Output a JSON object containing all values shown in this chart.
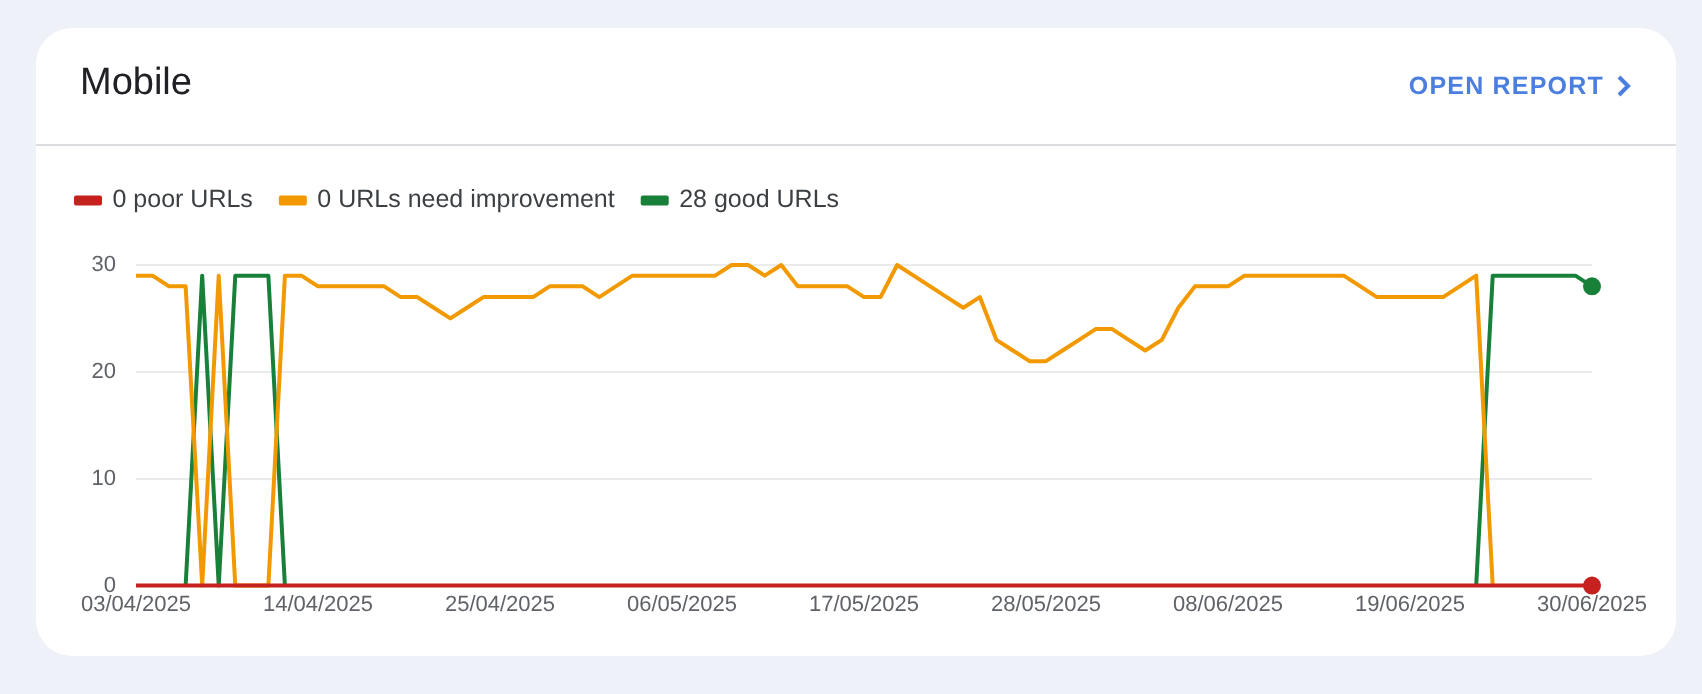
{
  "chart_data": {
    "type": "line",
    "title": "Mobile",
    "annotations": [
      "OPEN REPORT"
    ],
    "x": [
      "2025-04-03",
      "2025-04-04",
      "2025-04-05",
      "2025-04-06",
      "2025-04-07",
      "2025-04-08",
      "2025-04-09",
      "2025-04-10",
      "2025-04-11",
      "2025-04-12",
      "2025-04-13",
      "2025-04-14",
      "2025-04-15",
      "2025-04-16",
      "2025-04-17",
      "2025-04-18",
      "2025-04-19",
      "2025-04-20",
      "2025-04-21",
      "2025-04-22",
      "2025-04-23",
      "2025-04-24",
      "2025-04-25",
      "2025-04-26",
      "2025-04-27",
      "2025-04-28",
      "2025-04-29",
      "2025-04-30",
      "2025-05-01",
      "2025-05-02",
      "2025-05-03",
      "2025-05-04",
      "2025-05-05",
      "2025-05-06",
      "2025-05-07",
      "2025-05-08",
      "2025-05-09",
      "2025-05-10",
      "2025-05-11",
      "2025-05-12",
      "2025-05-13",
      "2025-05-14",
      "2025-05-15",
      "2025-05-16",
      "2025-05-17",
      "2025-05-18",
      "2025-05-19",
      "2025-05-20",
      "2025-05-21",
      "2025-05-22",
      "2025-05-23",
      "2025-05-24",
      "2025-05-25",
      "2025-05-26",
      "2025-05-27",
      "2025-05-28",
      "2025-05-29",
      "2025-05-30",
      "2025-05-31",
      "2025-06-01",
      "2025-06-02",
      "2025-06-03",
      "2025-06-04",
      "2025-06-05",
      "2025-06-06",
      "2025-06-07",
      "2025-06-08",
      "2025-06-09",
      "2025-06-10",
      "2025-06-11",
      "2025-06-12",
      "2025-06-13",
      "2025-06-14",
      "2025-06-15",
      "2025-06-16",
      "2025-06-17",
      "2025-06-18",
      "2025-06-19",
      "2025-06-20",
      "2025-06-21",
      "2025-06-22",
      "2025-06-23",
      "2025-06-24",
      "2025-06-25",
      "2025-06-26",
      "2025-06-27",
      "2025-06-28",
      "2025-06-29",
      "2025-06-30"
    ],
    "series": [
      {
        "name": "0 poor URLs",
        "color": "#c5221f",
        "values": [
          0,
          0,
          0,
          0,
          0,
          0,
          0,
          0,
          0,
          0,
          0,
          0,
          0,
          0,
          0,
          0,
          0,
          0,
          0,
          0,
          0,
          0,
          0,
          0,
          0,
          0,
          0,
          0,
          0,
          0,
          0,
          0,
          0,
          0,
          0,
          0,
          0,
          0,
          0,
          0,
          0,
          0,
          0,
          0,
          0,
          0,
          0,
          0,
          0,
          0,
          0,
          0,
          0,
          0,
          0,
          0,
          0,
          0,
          0,
          0,
          0,
          0,
          0,
          0,
          0,
          0,
          0,
          0,
          0,
          0,
          0,
          0,
          0,
          0,
          0,
          0,
          0,
          0,
          0,
          0,
          0,
          0,
          0,
          0,
          0,
          0,
          0,
          0,
          0
        ]
      },
      {
        "name": "0 URLs need improvement",
        "color": "#f29900",
        "values": [
          29,
          29,
          28,
          28,
          0,
          29,
          0,
          0,
          0,
          29,
          29,
          28,
          28,
          28,
          28,
          28,
          27,
          27,
          26,
          25,
          26,
          27,
          27,
          27,
          27,
          28,
          28,
          28,
          27,
          28,
          29,
          29,
          29,
          29,
          29,
          29,
          30,
          30,
          29,
          30,
          28,
          28,
          28,
          28,
          27,
          27,
          30,
          29,
          28,
          27,
          26,
          27,
          23,
          22,
          21,
          21,
          22,
          23,
          24,
          24,
          23,
          22,
          23,
          26,
          28,
          28,
          28,
          29,
          29,
          29,
          29,
          29,
          29,
          29,
          28,
          27,
          27,
          27,
          27,
          27,
          28,
          29,
          0,
          null,
          null,
          null,
          null,
          null,
          null
        ]
      },
      {
        "name": "28 good URLs",
        "color": "#188038",
        "values": [
          null,
          null,
          null,
          0,
          29,
          0,
          29,
          29,
          29,
          0,
          null,
          null,
          null,
          null,
          null,
          null,
          null,
          null,
          null,
          null,
          null,
          null,
          null,
          null,
          null,
          null,
          null,
          null,
          null,
          null,
          null,
          null,
          null,
          null,
          null,
          null,
          null,
          null,
          null,
          null,
          null,
          null,
          null,
          null,
          null,
          null,
          null,
          null,
          null,
          null,
          null,
          null,
          null,
          null,
          null,
          null,
          null,
          null,
          null,
          null,
          null,
          null,
          null,
          null,
          null,
          null,
          null,
          null,
          null,
          null,
          null,
          null,
          null,
          null,
          null,
          null,
          null,
          null,
          null,
          null,
          null,
          0,
          29,
          29,
          29,
          29,
          29,
          29,
          28
        ]
      }
    ],
    "xlim": [
      "2025-04-03",
      "2025-06-30"
    ],
    "xticks": [
      {
        "value": "2025-04-03",
        "label": "03/04/2025"
      },
      {
        "value": "2025-04-14",
        "label": "14/04/2025"
      },
      {
        "value": "2025-04-25",
        "label": "25/04/2025"
      },
      {
        "value": "2025-05-06",
        "label": "06/05/2025"
      },
      {
        "value": "2025-05-17",
        "label": "17/05/2025"
      },
      {
        "value": "2025-05-28",
        "label": "28/05/2025"
      },
      {
        "value": "2025-06-08",
        "label": "08/06/2025"
      },
      {
        "value": "2025-06-19",
        "label": "19/06/2025"
      },
      {
        "value": "2025-06-30",
        "label": "30/06/2025"
      }
    ],
    "ylim": [
      0,
      30
    ],
    "yticks": [
      0,
      10,
      20,
      30
    ],
    "grid": "y",
    "legend": "top left"
  }
}
